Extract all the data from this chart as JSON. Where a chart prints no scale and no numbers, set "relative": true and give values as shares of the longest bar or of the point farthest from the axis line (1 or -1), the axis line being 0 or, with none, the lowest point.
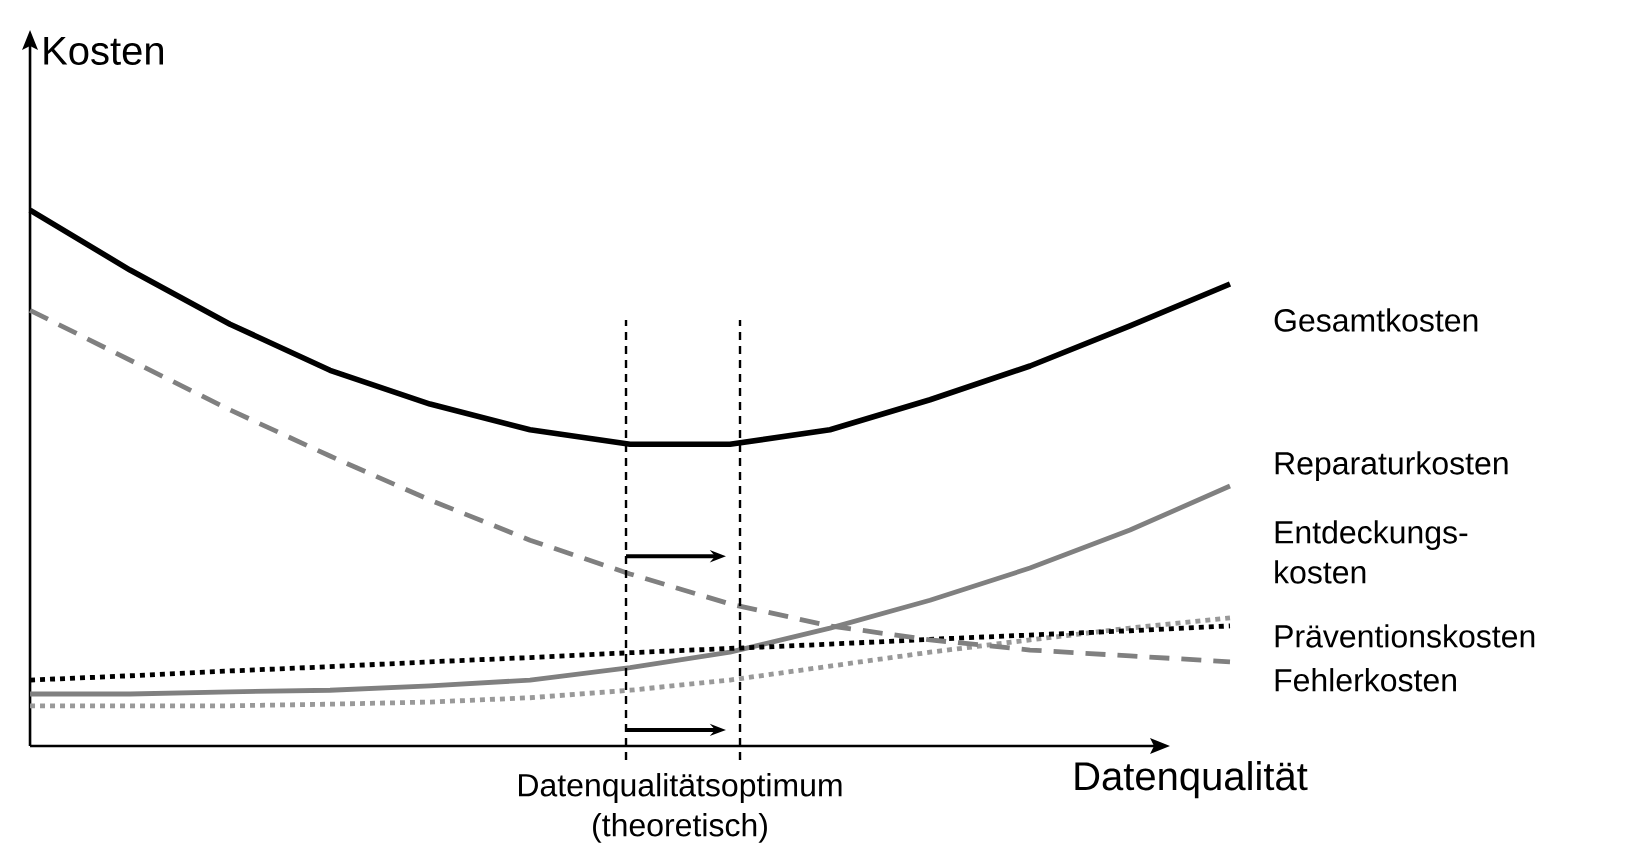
{
  "chart_data": {
    "type": "line",
    "relative": true,
    "ylabel": "Kosten",
    "xlabel": "Datenqualität",
    "categories": [
      null,
      null,
      null,
      null,
      null,
      null,
      null,
      null,
      null,
      null,
      null,
      null,
      null
    ],
    "series": [
      {
        "name": "Gesamtkosten",
        "color": "#000000",
        "line_style": "solid",
        "values": [
          1,
          0.888,
          0.787,
          0.701,
          0.638,
          0.59,
          0.563,
          0.563,
          0.59,
          0.646,
          0.709,
          0.784,
          0.862
        ]
      },
      {
        "name": "Reparaturkosten",
        "color": "#808080",
        "line_style": "solid",
        "values": [
          0.097,
          0.097,
          0.101,
          0.104,
          0.112,
          0.123,
          0.146,
          0.175,
          0.22,
          0.272,
          0.332,
          0.403,
          0.485
        ]
      },
      {
        "name": "Entdeckungs- kosten",
        "color": "#999999",
        "line_style": "dotted",
        "values": [
          0.075,
          0.075,
          0.075,
          0.078,
          0.082,
          0.09,
          0.104,
          0.123,
          0.149,
          0.175,
          0.198,
          0.22,
          0.239
        ]
      },
      {
        "name": "Präventionskosten",
        "color": "#000000",
        "line_style": "dotted",
        "values": [
          0.123,
          0.131,
          0.14,
          0.148,
          0.157,
          0.165,
          0.174,
          0.182,
          0.19,
          0.199,
          0.207,
          0.215,
          0.224
        ]
      },
      {
        "name": "Fehlerkosten",
        "color": "#808080",
        "line_style": "dashed",
        "values": [
          0.813,
          0.72,
          0.627,
          0.541,
          0.459,
          0.384,
          0.321,
          0.265,
          0.224,
          0.198,
          0.179,
          0.168,
          0.157
        ]
      }
    ],
    "annotations": [
      "Datenqualitätsoptimum (theoretisch)"
    ]
  }
}
